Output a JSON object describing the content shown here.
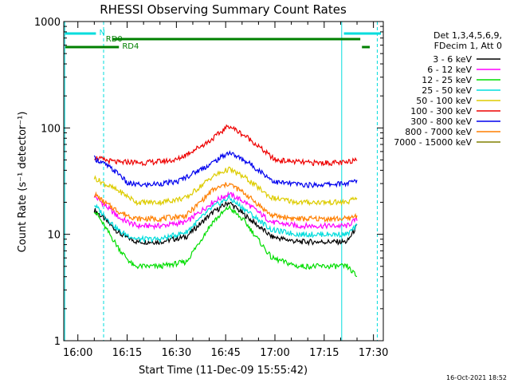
{
  "chart_data": {
    "type": "line",
    "title": "RHESSI Observing Summary Count Rates",
    "xlabel": "Start Time (11-Dec-09 15:55:42)",
    "ylabel": "Count Rate (s⁻¹ detector⁻¹)",
    "yscale": "log",
    "xlim": [
      "15:55:42",
      "17:33:00"
    ],
    "ylim": [
      1,
      1000
    ],
    "x_ticks": [
      "16:00",
      "16:15",
      "16:30",
      "16:45",
      "17:00",
      "17:15",
      "17:30"
    ],
    "y_ticks": [
      "1",
      "10",
      "100",
      "1000"
    ],
    "footer": "16-Oct-2021 18:52",
    "legend": {
      "placement": "right-outside",
      "header": [
        "Det 1,3,4,5,6,9,",
        "FDecim 1, Att 0"
      ]
    },
    "series": [
      {
        "name": "3 - 6 keV",
        "color": "#000000",
        "times": [
          "16:05",
          "16:08",
          "16:13",
          "16:18",
          "16:25",
          "16:33",
          "16:41",
          "16:46",
          "16:51",
          "16:59",
          "17:07",
          "17:22",
          "17:25"
        ],
        "values": [
          17,
          14,
          10,
          8.5,
          8.5,
          9.5,
          16,
          20,
          15,
          9.5,
          8.5,
          8.5,
          12
        ]
      },
      {
        "name": "6 - 12 keV",
        "color": "#ff00ff",
        "times": [
          "16:05",
          "16:08",
          "16:13",
          "16:18",
          "16:25",
          "16:33",
          "16:41",
          "16:46",
          "16:51",
          "16:59",
          "17:07",
          "17:22",
          "17:25"
        ],
        "values": [
          23,
          19,
          14,
          12,
          12,
          13,
          20,
          24,
          20,
          13,
          12,
          12,
          14
        ]
      },
      {
        "name": "12 - 25 keV",
        "color": "#00dd00",
        "times": [
          "16:05",
          "16:08",
          "16:13",
          "16:17",
          "16:25",
          "16:33",
          "16:41",
          "16:46",
          "16:51",
          "16:59",
          "17:07",
          "17:22",
          "17:25"
        ],
        "values": [
          17,
          12,
          7,
          5,
          5,
          5.5,
          13,
          18,
          13,
          6,
          5,
          5,
          4
        ]
      },
      {
        "name": "25 - 50 keV",
        "color": "#00dddd",
        "times": [
          "16:05",
          "16:08",
          "16:13",
          "16:18",
          "16:25",
          "16:33",
          "16:41",
          "16:46",
          "16:51",
          "16:59",
          "17:07",
          "17:22",
          "17:25"
        ],
        "values": [
          19,
          15,
          10.5,
          9,
          9,
          10.5,
          18,
          22,
          17,
          11,
          10,
          10,
          12
        ]
      },
      {
        "name": "50 - 100 keV",
        "color": "#ddcc00",
        "times": [
          "16:05",
          "16:08",
          "16:13",
          "16:18",
          "16:25",
          "16:33",
          "16:41",
          "16:46",
          "16:51",
          "16:59",
          "17:07",
          "17:22",
          "17:25"
        ],
        "values": [
          34,
          30,
          25,
          20,
          20,
          22,
          35,
          41,
          34,
          22,
          20,
          20,
          22
        ]
      },
      {
        "name": "100 - 300 keV",
        "color": "#ee0000",
        "times": [
          "16:05",
          "16:08",
          "16:13",
          "16:15",
          "16:20",
          "16:30",
          "16:40",
          "16:46",
          "16:52",
          "17:00",
          "17:10",
          "17:22",
          "17:25"
        ],
        "values": [
          53,
          50,
          47,
          48,
          47,
          50,
          75,
          105,
          80,
          50,
          47,
          47,
          52
        ]
      },
      {
        "name": "300 - 800 keV",
        "color": "#0000ee",
        "times": [
          "16:05",
          "16:08",
          "16:13",
          "16:15",
          "16:20",
          "16:30",
          "16:40",
          "16:46",
          "16:52",
          "17:00",
          "17:10",
          "17:22",
          "17:25"
        ],
        "values": [
          52,
          46,
          36,
          30,
          29,
          31,
          45,
          59,
          47,
          31,
          29,
          30,
          32
        ]
      },
      {
        "name": "800 - 7000 keV",
        "color": "#ff7f00",
        "times": [
          "16:05",
          "16:08",
          "16:13",
          "16:18",
          "16:25",
          "16:33",
          "16:41",
          "16:46",
          "16:51",
          "16:59",
          "17:07",
          "17:22",
          "17:25"
        ],
        "values": [
          24,
          20,
          16,
          14,
          14,
          15,
          26,
          30,
          24,
          15,
          14,
          14,
          15
        ]
      },
      {
        "name": "7000 - 15000 keV",
        "color": "#808000",
        "times": [],
        "values": []
      }
    ],
    "segments": [
      {
        "label": "N",
        "color": "#00dddd"
      },
      {
        "label": "RD0",
        "color": "#008000"
      },
      {
        "label": "RD4",
        "color": "#008000"
      }
    ]
  }
}
